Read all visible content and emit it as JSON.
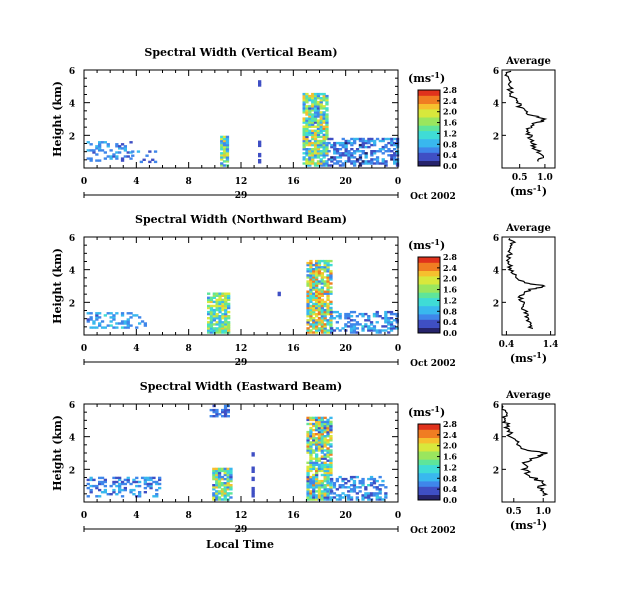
{
  "figure": {
    "common_xlabel": "Local Time",
    "date_label": "Oct 2002",
    "day_label": "29",
    "colorbar_unit_base": "(ms",
    "colorbar_unit_exp": "-1",
    "colorbar_unit_close": ")",
    "avg_title": "Average",
    "avg_unit_base": "(ms",
    "avg_unit_exp": "-1",
    "avg_unit_close": ")",
    "ylabel": "Height (km)"
  },
  "colors": {
    "scale": [
      "#26236b",
      "#3f4fc4",
      "#3f86ea",
      "#39b8ee",
      "#3fdcd6",
      "#5fe59a",
      "#9ae65e",
      "#d8e83c",
      "#f6c02e",
      "#f07d22",
      "#e0321c"
    ]
  },
  "chart_data": [
    {
      "type": "heatmap",
      "title": "Spectral Width (Vertical Beam)",
      "xlabel": "Local Time",
      "ylabel": "Height (km)",
      "xlim": [
        0,
        24
      ],
      "ylim": [
        0,
        6
      ],
      "x_ticks": [
        "0",
        "4",
        "8",
        "12",
        "16",
        "20",
        "0"
      ],
      "y_ticks": [
        "2",
        "4",
        "6"
      ],
      "colorbar": {
        "label": "(ms-1)",
        "ticks": [
          "0.0",
          "0.4",
          "0.8",
          "1.2",
          "1.6",
          "2.0",
          "2.4",
          "2.8"
        ],
        "range": [
          0,
          2.8
        ]
      },
      "patches": [
        {
          "x0": 0.2,
          "x1": 3.6,
          "y0": 0.4,
          "y1": 1.6,
          "density": 0.35,
          "level": 0.6,
          "spread": 0.3
        },
        {
          "x0": 3.6,
          "x1": 5.4,
          "y0": 0.2,
          "y1": 1.0,
          "density": 0.2,
          "level": 0.5,
          "spread": 0.25
        },
        {
          "x0": 10.4,
          "x1": 11.0,
          "y0": 0.1,
          "y1": 1.9,
          "density": 0.9,
          "level": 1.3,
          "spread": 0.9
        },
        {
          "x0": 13.3,
          "x1": 13.5,
          "y0": 0.3,
          "y1": 1.6,
          "density": 0.55,
          "level": 0.3,
          "spread": 0.1
        },
        {
          "x0": 13.3,
          "x1": 13.5,
          "y0": 5.0,
          "y1": 5.3,
          "density": 1.0,
          "level": 0.3,
          "spread": 0.1
        },
        {
          "x0": 16.7,
          "x1": 18.6,
          "y0": 0.1,
          "y1": 4.6,
          "density": 0.85,
          "level": 1.4,
          "spread": 1.0
        },
        {
          "x0": 18.6,
          "x1": 24.0,
          "y0": 0.1,
          "y1": 1.8,
          "density": 0.55,
          "level": 0.5,
          "spread": 0.4
        }
      ],
      "average_profile": {
        "xlim": [
          0.15,
          1.2
        ],
        "x_ticks": [
          "0.5",
          "1.0"
        ],
        "y_ticks": [
          "2",
          "4",
          "6"
        ],
        "heights": [
          0.4,
          0.8,
          1.2,
          1.6,
          2.0,
          2.4,
          2.8,
          3.0,
          3.2,
          3.6,
          4.0,
          4.4,
          4.8,
          5.2,
          5.6,
          6.0
        ],
        "values": [
          0.9,
          0.95,
          0.8,
          0.75,
          0.7,
          0.65,
          0.85,
          1.05,
          0.75,
          0.55,
          0.45,
          0.35,
          0.3,
          0.3,
          0.25,
          0.3
        ]
      }
    },
    {
      "type": "heatmap",
      "title": "Spectral Width (Northward Beam)",
      "xlabel": "Local Time",
      "ylabel": "Height (km)",
      "xlim": [
        0,
        24
      ],
      "ylim": [
        0,
        6
      ],
      "x_ticks": [
        "0",
        "4",
        "8",
        "12",
        "16",
        "20",
        "0"
      ],
      "y_ticks": [
        "2",
        "4",
        "6"
      ],
      "colorbar": {
        "label": "(ms-1)",
        "ticks": [
          "0.0",
          "0.4",
          "0.8",
          "1.2",
          "1.6",
          "2.0",
          "2.4",
          "2.8"
        ],
        "range": [
          0,
          2.8
        ]
      },
      "patches": [
        {
          "x0": 0.2,
          "x1": 4.6,
          "y0": 0.4,
          "y1": 1.4,
          "density": 0.35,
          "level": 0.7,
          "spread": 0.3
        },
        {
          "x0": 9.4,
          "x1": 11.0,
          "y0": 0.1,
          "y1": 2.5,
          "density": 0.85,
          "level": 1.4,
          "spread": 0.8
        },
        {
          "x0": 14.8,
          "x1": 15.0,
          "y0": 2.4,
          "y1": 2.6,
          "density": 1.0,
          "level": 0.3,
          "spread": 0.1
        },
        {
          "x0": 17.0,
          "x1": 18.8,
          "y0": 0.1,
          "y1": 4.6,
          "density": 0.85,
          "level": 1.5,
          "spread": 1.1
        },
        {
          "x0": 18.8,
          "x1": 24.0,
          "y0": 0.1,
          "y1": 1.4,
          "density": 0.45,
          "level": 0.6,
          "spread": 0.4
        }
      ],
      "average_profile": {
        "xlim": [
          0.3,
          1.5
        ],
        "x_ticks": [
          "0.4",
          "1.4"
        ],
        "y_ticks": [
          "2",
          "4",
          "6"
        ],
        "heights": [
          0.4,
          0.8,
          1.2,
          1.6,
          2.0,
          2.4,
          2.8,
          3.0,
          3.2,
          3.6,
          4.0,
          4.4,
          4.8,
          5.2,
          5.6,
          6.0
        ],
        "values": [
          0.95,
          0.9,
          0.85,
          0.8,
          0.75,
          0.7,
          0.95,
          1.3,
          0.8,
          0.6,
          0.5,
          0.45,
          0.45,
          0.5,
          0.55,
          0.5
        ]
      }
    },
    {
      "type": "heatmap",
      "title": "Spectral Width (Eastward Beam)",
      "xlabel": "Local Time",
      "ylabel": "Height (km)",
      "xlim": [
        0,
        24
      ],
      "ylim": [
        0,
        6
      ],
      "x_ticks": [
        "0",
        "4",
        "8",
        "12",
        "16",
        "20",
        "0"
      ],
      "y_ticks": [
        "2",
        "4",
        "6"
      ],
      "colorbar": {
        "label": "(ms-1)",
        "ticks": [
          "0.0",
          "0.4",
          "0.8",
          "1.2",
          "1.6",
          "2.0",
          "2.4",
          "2.8"
        ],
        "range": [
          0,
          2.8
        ]
      },
      "patches": [
        {
          "x0": 0.2,
          "x1": 5.8,
          "y0": 0.3,
          "y1": 1.5,
          "density": 0.4,
          "level": 0.6,
          "spread": 0.3
        },
        {
          "x0": 9.8,
          "x1": 11.2,
          "y0": 0.1,
          "y1": 2.0,
          "density": 0.85,
          "level": 1.3,
          "spread": 1.0
        },
        {
          "x0": 9.6,
          "x1": 11.0,
          "y0": 5.2,
          "y1": 5.9,
          "density": 0.5,
          "level": 0.4,
          "spread": 0.2
        },
        {
          "x0": 12.8,
          "x1": 13.0,
          "y0": 0.3,
          "y1": 3.2,
          "density": 0.4,
          "level": 0.3,
          "spread": 0.1
        },
        {
          "x0": 17.0,
          "x1": 18.8,
          "y0": 0.1,
          "y1": 5.2,
          "density": 0.8,
          "level": 1.4,
          "spread": 1.1
        },
        {
          "x0": 18.8,
          "x1": 23.0,
          "y0": 0.1,
          "y1": 1.6,
          "density": 0.5,
          "level": 0.6,
          "spread": 0.4
        }
      ],
      "average_profile": {
        "xlim": [
          0.3,
          1.2
        ],
        "x_ticks": [
          "0.5",
          "1.0"
        ],
        "y_ticks": [
          "2",
          "4",
          "6"
        ],
        "heights": [
          0.4,
          0.8,
          1.2,
          1.6,
          2.0,
          2.4,
          2.8,
          3.0,
          3.2,
          3.6,
          4.0,
          4.4,
          4.8,
          5.2,
          5.6,
          6.0
        ],
        "values": [
          1.05,
          0.95,
          1.0,
          0.75,
          0.7,
          0.65,
          0.95,
          1.05,
          0.7,
          0.55,
          0.45,
          0.4,
          0.38,
          0.36,
          0.34,
          0.32
        ]
      }
    }
  ]
}
